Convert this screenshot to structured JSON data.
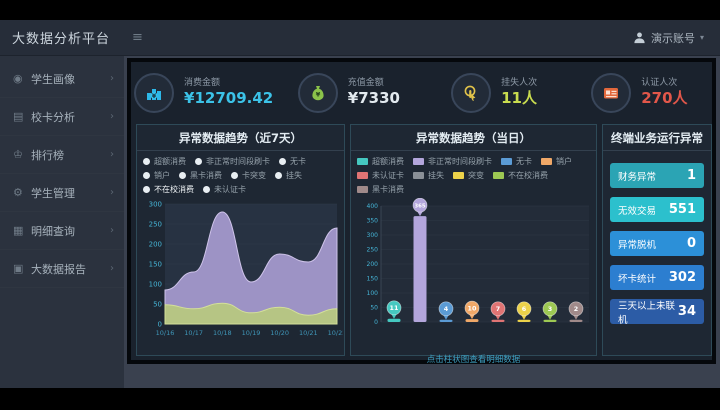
{
  "header": {
    "title": "大数据分析平台",
    "menu_glyph": "≡",
    "user": "演示账号",
    "caret": "▾"
  },
  "sidebar": {
    "chevron": "›",
    "items": [
      {
        "icon": "◉",
        "label": "学生画像"
      },
      {
        "icon": "▤",
        "label": "校卡分析"
      },
      {
        "icon": "♔",
        "label": "排行榜"
      },
      {
        "icon": "⚙",
        "label": "学生管理"
      },
      {
        "icon": "▦",
        "label": "明细查询"
      },
      {
        "icon": "▣",
        "label": "大数据报告"
      }
    ]
  },
  "kpis": {
    "cards": [
      {
        "label": "消费金额",
        "value": "¥12709.42",
        "color": "#3cc3e8"
      },
      {
        "label": "充值金额",
        "value": "¥7330",
        "color": "#e3eaef"
      },
      {
        "label": "挂失人次",
        "value": "11人",
        "color": "#c9dc4f"
      },
      {
        "label": "认证人次",
        "value": "270人",
        "color": "#e2574a"
      }
    ]
  },
  "panels": {
    "week": {
      "title": "异常数据趋势（近7天）",
      "legend": [
        {
          "label": "超额消费",
          "selected": false
        },
        {
          "label": "非正常时间段刷卡",
          "selected": false
        },
        {
          "label": "无卡",
          "selected": false
        },
        {
          "label": "销户",
          "selected": false
        },
        {
          "label": "黑卡消费",
          "selected": false
        },
        {
          "label": "卡突变",
          "selected": false
        },
        {
          "label": "挂失",
          "selected": false
        },
        {
          "label": "不在校消费",
          "selected": true
        },
        {
          "label": "未认证卡",
          "selected": false
        }
      ]
    },
    "day": {
      "title": "异常数据趋势（当日）",
      "caption": "点击柱状图查看明细数据",
      "legend": [
        {
          "label": "超额消费",
          "color": "#45c8c0"
        },
        {
          "label": "非正常时间段刷卡",
          "color": "#b3a6dc"
        },
        {
          "label": "无卡",
          "color": "#5b9bd5"
        },
        {
          "label": "销户",
          "color": "#f0a868"
        },
        {
          "label": "未认证卡",
          "color": "#e07474"
        },
        {
          "label": "挂失",
          "color": "#8a9097"
        },
        {
          "label": "突变",
          "color": "#ecd24a"
        },
        {
          "label": "不在校消费",
          "color": "#9dc853"
        },
        {
          "label": "黑卡消费",
          "color": "#a08a8a"
        }
      ]
    },
    "terminal": {
      "title": "终端业务运行异常",
      "rows": [
        {
          "label": "财务异常",
          "value": "1",
          "color": "#2ba4b4"
        },
        {
          "label": "无效交易",
          "value": "551",
          "color": "#2cc0cd"
        },
        {
          "label": "异常脱机",
          "value": "0",
          "color": "#2c90d8"
        },
        {
          "label": "坏卡统计",
          "value": "302",
          "color": "#2c7ed0"
        },
        {
          "label": "三天以上未联机",
          "value": "34",
          "color": "#2c5ca6"
        }
      ]
    }
  },
  "chart_data": [
    {
      "type": "area",
      "title": "异常数据趋势（近7天）",
      "x": [
        "10/16",
        "10/17",
        "10/18",
        "10/19",
        "10/20",
        "10/21",
        "10/22"
      ],
      "ylim": [
        0,
        300
      ],
      "ytick_step": 50,
      "grid": true,
      "legend_position": "top",
      "series": [
        {
          "name": "非正常时间段刷卡",
          "color": "#a79bd0",
          "line": "#cfc4ea",
          "values": [
            85,
            130,
            280,
            105,
            175,
            155,
            240
          ]
        },
        {
          "name": "不在校消费",
          "color": "#b9c97e",
          "line": "#d4e09a",
          "values": [
            48,
            38,
            52,
            28,
            42,
            22,
            38
          ]
        }
      ]
    },
    {
      "type": "bar",
      "title": "异常数据趋势（当日）",
      "categories": [
        "超额消费",
        "非正常时间段刷卡",
        "无卡",
        "销户",
        "未认证卡",
        "突变",
        "不在校消费",
        "黑卡消费"
      ],
      "values": [
        11,
        365,
        4,
        10,
        7,
        6,
        3,
        2
      ],
      "colors": [
        "#45c8c0",
        "#b3a6dc",
        "#5b9bd5",
        "#f0a868",
        "#e07474",
        "#ecd24a",
        "#9dc853",
        "#a08a8a"
      ],
      "ylim": [
        0,
        400
      ],
      "ytick_step": 50,
      "grid": true,
      "xlabel": "",
      "ylabel": ""
    }
  ]
}
